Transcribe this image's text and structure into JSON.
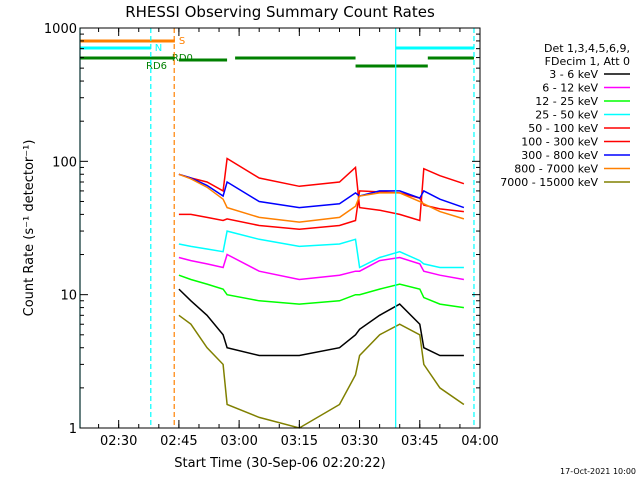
{
  "chart_data": {
    "type": "line",
    "title": "RHESSI Observing Summary Count Rates",
    "xlabel": "Start Time (30-Sep-06 02:20:22)",
    "ylabel": "Count Rate (s⁻¹ detector⁻¹)",
    "xlim": [
      "02:20:22",
      "04:00:00"
    ],
    "ylim": [
      1,
      1000
    ],
    "yscale": "log",
    "x_ticks": [
      "02:30",
      "02:45",
      "03:00",
      "03:15",
      "03:30",
      "03:45",
      "04:00"
    ],
    "y_ticks": [
      "1",
      "10",
      "100",
      "1000"
    ],
    "legend_header": [
      "Det 1,3,4,5,6,9,",
      "FDecim 1, Att 0"
    ],
    "legend_position": "right",
    "footer_date": "17-Oct-2021 10:00",
    "x": [
      "02:45",
      "02:48",
      "02:52",
      "02:56",
      "02:57",
      "03:05",
      "03:15",
      "03:25",
      "03:29",
      "03:30",
      "03:35",
      "03:40",
      "03:45",
      "03:46",
      "03:50",
      "03:56"
    ],
    "series": [
      {
        "name": "3 - 6 keV",
        "color": "#000000",
        "values": [
          11,
          9,
          7,
          5,
          4,
          3.5,
          3.5,
          4,
          5,
          5.5,
          7,
          8.5,
          6,
          4,
          3.5,
          3.5
        ]
      },
      {
        "name": "6 - 12 keV",
        "color": "#ff00ff",
        "values": [
          19,
          18,
          17,
          16,
          20,
          15,
          13,
          14,
          15,
          15,
          18,
          19,
          17,
          15,
          14,
          13
        ]
      },
      {
        "name": "12 - 25 keV",
        "color": "#00ff00",
        "values": [
          14,
          13,
          12,
          11,
          10,
          9,
          8.5,
          9,
          10,
          10,
          11,
          12,
          11,
          9.5,
          8.5,
          8
        ]
      },
      {
        "name": "25 - 50 keV",
        "color": "#00ffff",
        "values": [
          24,
          23,
          22,
          21,
          30,
          26,
          23,
          24,
          26,
          16,
          19,
          21,
          18,
          17,
          16,
          16
        ]
      },
      {
        "name": "50 - 100 keV",
        "color": "#ff0000",
        "values": [
          40,
          40,
          38,
          36,
          37,
          33,
          31,
          33,
          36,
          60,
          59,
          58,
          53,
          47,
          44,
          42
        ]
      },
      {
        "name": "100 - 300 keV",
        "color": "#ff0000",
        "values": [
          80,
          75,
          70,
          60,
          105,
          75,
          65,
          70,
          90,
          45,
          43,
          40,
          36,
          88,
          78,
          68
        ]
      },
      {
        "name": "300 - 800 keV",
        "color": "#0000ff",
        "values": [
          80,
          75,
          66,
          55,
          70,
          50,
          45,
          48,
          58,
          55,
          60,
          60,
          53,
          60,
          52,
          45
        ]
      },
      {
        "name": "800 - 7000 keV",
        "color": "#ff8000",
        "values": [
          80,
          74,
          64,
          52,
          45,
          38,
          35,
          38,
          46,
          55,
          58,
          58,
          50,
          48,
          42,
          37
        ]
      },
      {
        "name": "7000 - 15000 keV",
        "color": "#808000",
        "values": [
          7,
          6,
          4,
          3,
          1.5,
          1.2,
          1,
          1.5,
          2.5,
          3.5,
          5,
          6,
          5,
          3,
          2,
          1.5
        ]
      }
    ],
    "state_bars": [
      {
        "label": "S",
        "color": "#ff8000",
        "intervals": [
          [
            "02:20:22",
            "02:44:00"
          ]
        ]
      },
      {
        "label": "N",
        "color": "#00ffff",
        "intervals": [
          [
            "02:20:22",
            "02:38:00"
          ],
          [
            "03:39:00",
            "03:58:30"
          ]
        ]
      },
      {
        "label": "RD6",
        "color": "#008000",
        "intervals": [
          [
            "02:20:22",
            "02:44:00"
          ]
        ]
      },
      {
        "label": "RD0",
        "color": "#008000",
        "intervals": [
          [
            "02:45:00",
            "02:57:00"
          ],
          [
            "02:59:00",
            "03:29:00"
          ],
          [
            "03:29:00",
            "03:47:00"
          ],
          [
            "03:47:00",
            "03:58:30"
          ]
        ]
      }
    ],
    "vertical_markers": [
      {
        "time": "02:20:22",
        "color": "#00ffff",
        "style": "solid"
      },
      {
        "time": "02:38:00",
        "color": "#00ffff",
        "style": "dashed"
      },
      {
        "time": "02:43:50",
        "color": "#ff8000",
        "style": "dashed"
      },
      {
        "time": "03:39:00",
        "color": "#00ffff",
        "style": "solid"
      },
      {
        "time": "03:58:30",
        "color": "#00ffff",
        "style": "dashed"
      }
    ]
  }
}
